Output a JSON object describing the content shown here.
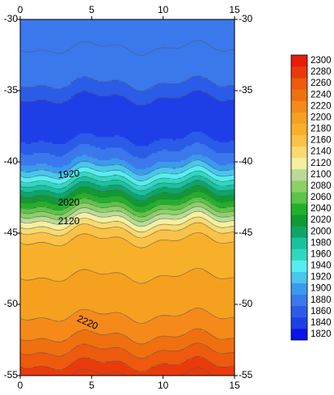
{
  "chart_data": {
    "type": "heatmap",
    "title": "",
    "xlabel": "",
    "ylabel": "",
    "xlim": [
      0,
      15
    ],
    "ylim": [
      -55,
      -30
    ],
    "x_ticks": [
      0,
      5,
      10,
      15
    ],
    "y_ticks": [
      -30,
      -35,
      -40,
      -45,
      -50,
      -55
    ],
    "x_tick_labels": [
      "0",
      "5",
      "10",
      "15"
    ],
    "y_tick_labels": [
      "-30",
      "-35",
      "-40",
      "-45",
      "-50",
      "-55"
    ],
    "colorbar": {
      "levels": [
        1820,
        1840,
        1860,
        1880,
        1900,
        1920,
        1940,
        1960,
        1980,
        2000,
        2020,
        2040,
        2060,
        2080,
        2100,
        2120,
        2140,
        2160,
        2180,
        2200,
        2220,
        2240,
        2260,
        2280,
        2300
      ],
      "labels": [
        "1820",
        "1840",
        "1860",
        "1880",
        "1900",
        "1920",
        "1940",
        "1960",
        "1980",
        "2000",
        "2020",
        "2040",
        "2060",
        "2080",
        "2100",
        "2120",
        "2140",
        "2160",
        "2180",
        "2200",
        "2220",
        "2240",
        "2260",
        "2280",
        "2300"
      ],
      "colors": [
        "#0a14e6",
        "#1e3fe8",
        "#2a5ce8",
        "#3a78ec",
        "#3a9aee",
        "#48c6ee",
        "#55eef0",
        "#30d8c0",
        "#18c2a0",
        "#0ca66a",
        "#109a32",
        "#22b02a",
        "#5cc448",
        "#8ed068",
        "#b8dc98",
        "#f4f0a0",
        "#f8da70",
        "#fac246",
        "#f8b02a",
        "#f6a020",
        "#f58a1a",
        "#f07010",
        "#ee5a0e",
        "#ea3a0c",
        "#e81c0a"
      ]
    },
    "profile_depth": [
      -30,
      -32,
      -34,
      -35,
      -36,
      -38,
      -40,
      -41,
      -42,
      -43,
      -44,
      -45,
      -46,
      -48,
      -50,
      -52,
      -53,
      -54,
      -55
    ],
    "profile_value": [
      1880,
      1880,
      1870,
      1850,
      1830,
      1830,
      1880,
      1930,
      1990,
      2040,
      2100,
      2150,
      2170,
      2180,
      2190,
      2215,
      2235,
      2255,
      2280
    ],
    "contour_labels": [
      {
        "text": "1920",
        "x": 3.4,
        "y": -40.9,
        "angle": -5
      },
      {
        "text": "2020",
        "x": 3.4,
        "y": -42.9,
        "angle": 0
      },
      {
        "text": "2120",
        "x": 3.4,
        "y": -44.2,
        "angle": 0
      },
      {
        "text": "2220",
        "x": 4.7,
        "y": -51.3,
        "angle": 24
      }
    ]
  }
}
